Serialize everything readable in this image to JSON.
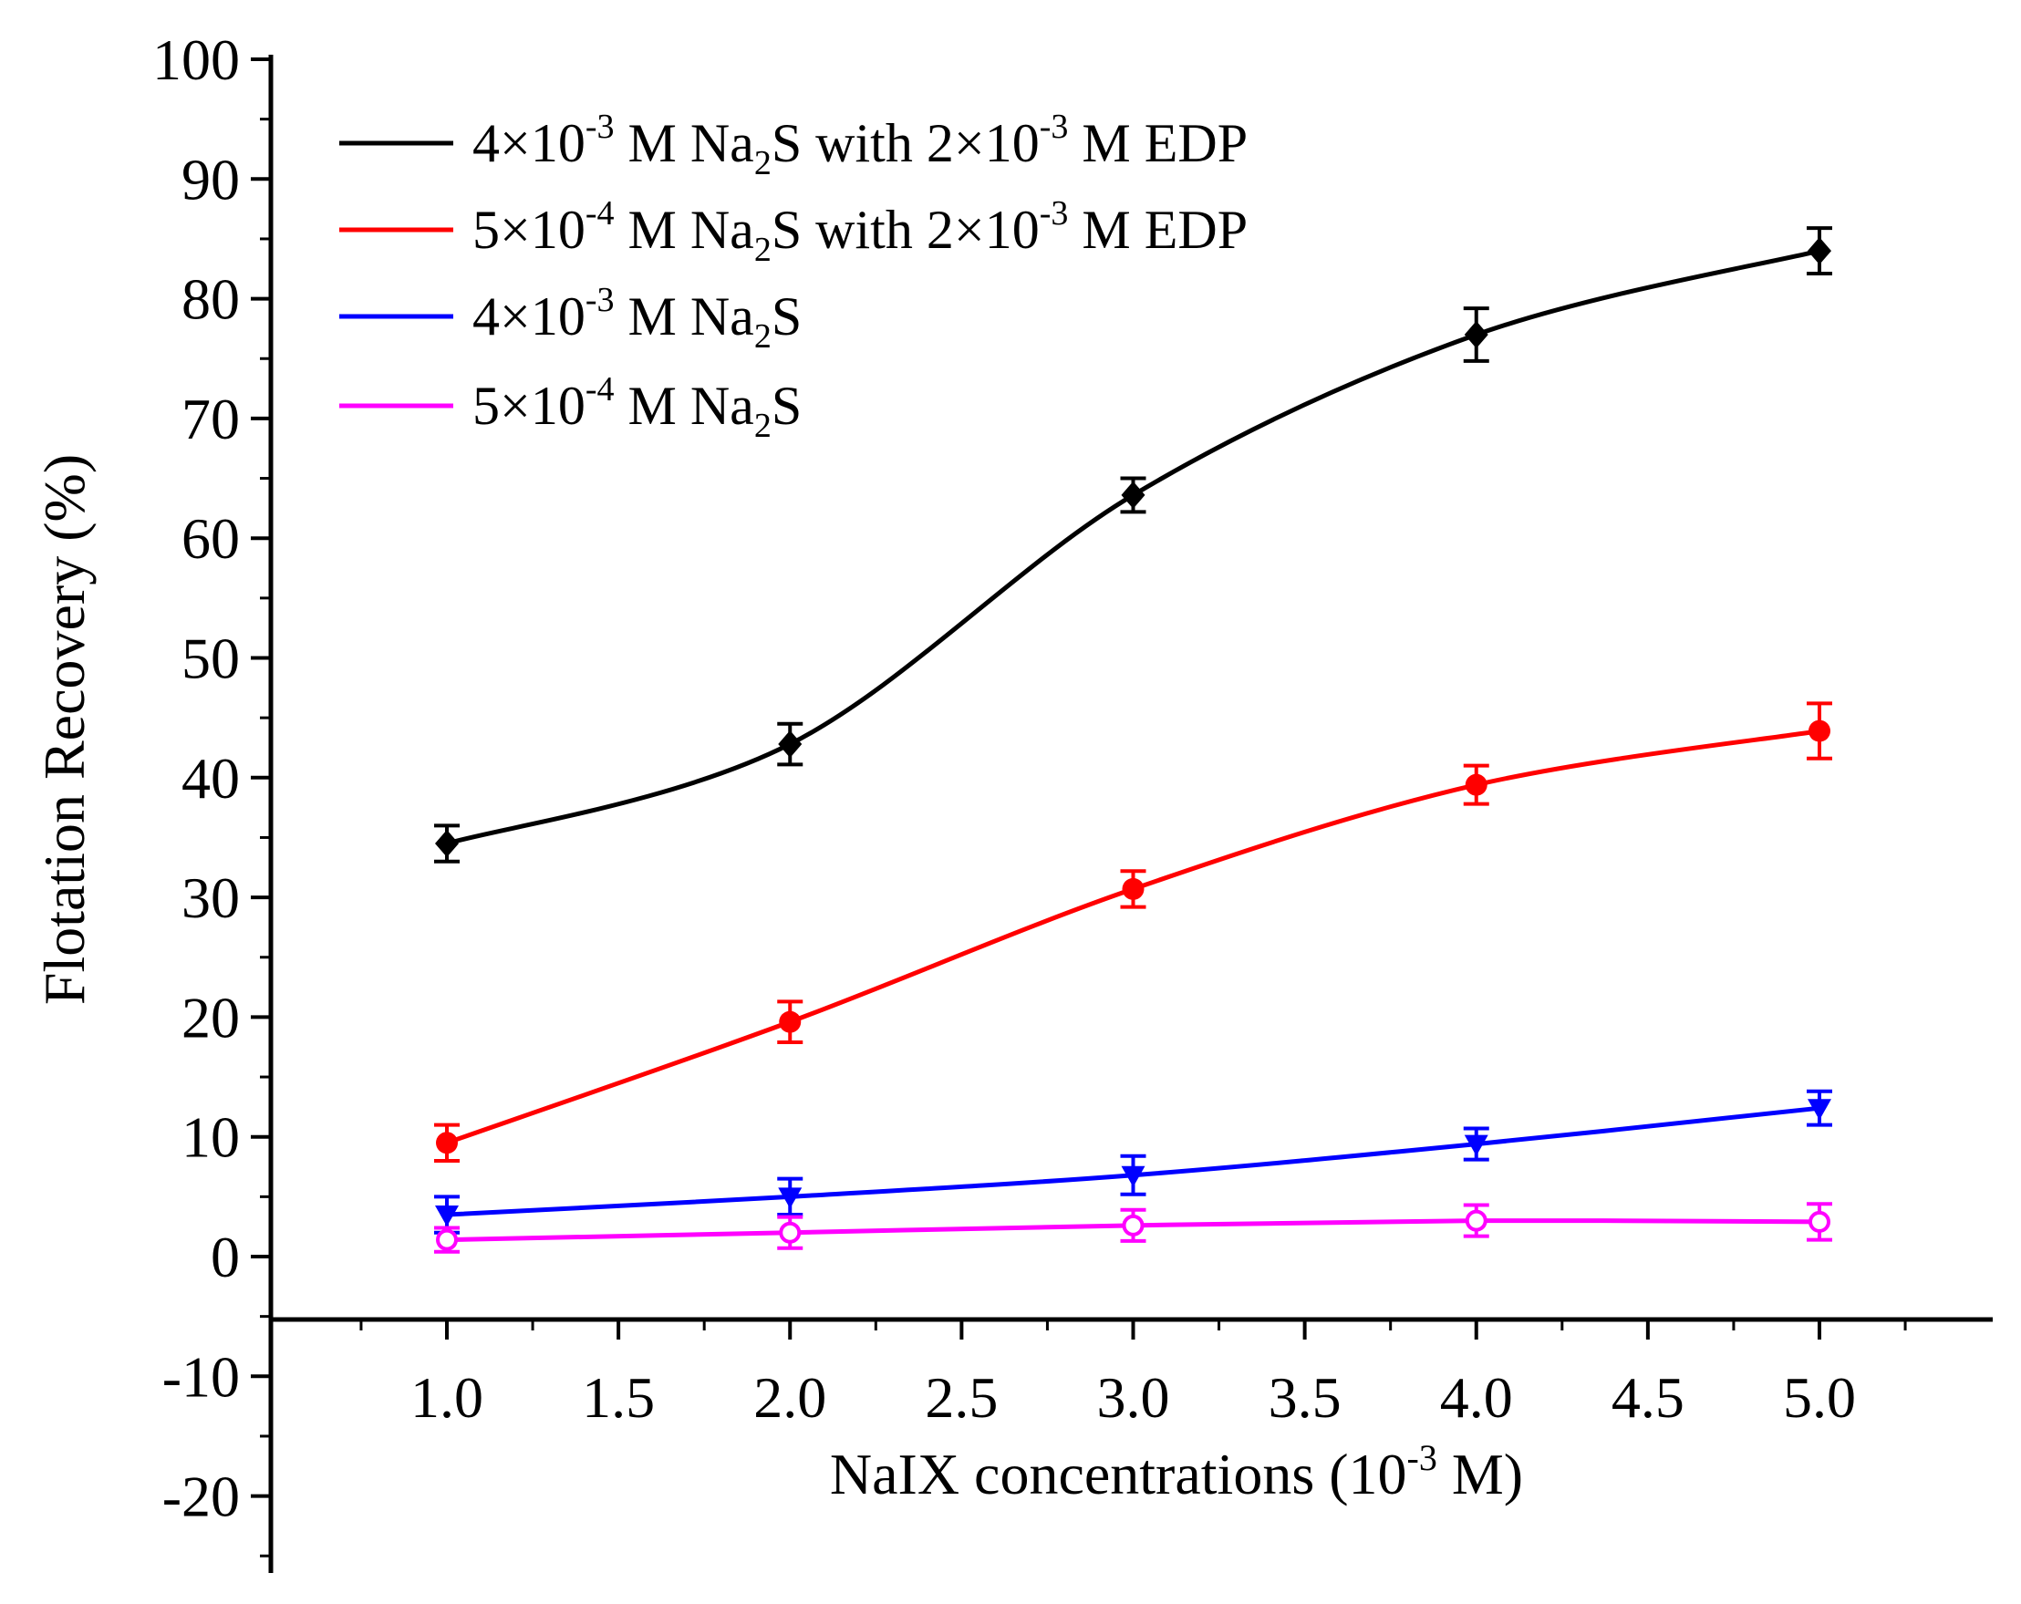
{
  "chart_data": {
    "type": "line",
    "title": "",
    "xlabel": "NaIX concentrations (10",
    "xlabel_sup": "-3",
    "xlabel_end": " M)",
    "ylabel": "Flotation Recovery (%)",
    "x": [
      1.0,
      2.0,
      3.0,
      4.0,
      5.0
    ],
    "xlim": [
      0.5,
      5.5
    ],
    "ylim": [
      -25,
      100
    ],
    "x_ticks": [
      1.0,
      1.5,
      2.0,
      2.5,
      3.0,
      3.5,
      4.0,
      4.5,
      5.0
    ],
    "x_tick_labels": [
      "1.0",
      "1.5",
      "2.0",
      "2.5",
      "3.0",
      "3.5",
      "4.0",
      "4.5",
      "5.0"
    ],
    "y_ticks": [
      -20,
      -10,
      0,
      10,
      20,
      30,
      40,
      50,
      60,
      70,
      80,
      90,
      100
    ],
    "y_tick_labels": [
      "-20",
      "-10",
      "0",
      "10",
      "20",
      "30",
      "40",
      "50",
      "60",
      "70",
      "80",
      "90",
      "100"
    ],
    "grid": false,
    "legend_position": "top-left",
    "series": [
      {
        "name": "4×10-3 M Na2S with 2×10-3 M EDP",
        "legend_parts": [
          "4×10",
          "-3",
          " M Na",
          "2",
          "S with 2×10",
          "-3",
          " M EDP"
        ],
        "color": "#000000",
        "marker": "diamond",
        "values": [
          34.5,
          42.8,
          63.6,
          77.0,
          84.0
        ],
        "errors": [
          1.5,
          1.7,
          1.4,
          2.2,
          1.9
        ]
      },
      {
        "name": "5×10-4 M Na2S with 2×10-3 M EDP",
        "legend_parts": [
          "5×10",
          "-4",
          " M Na",
          "2",
          "S with 2×10",
          "-3",
          " M EDP"
        ],
        "color": "#ff0000",
        "marker": "circle",
        "values": [
          9.5,
          19.6,
          30.7,
          39.4,
          43.9
        ],
        "errors": [
          1.5,
          1.7,
          1.5,
          1.6,
          2.3
        ]
      },
      {
        "name": "4×10-3 M Na2S",
        "legend_parts": [
          "4×10",
          "-3",
          " M Na",
          "2",
          "S"
        ],
        "color": "#0000ff",
        "marker": "triangle-down",
        "values": [
          3.5,
          5.0,
          6.8,
          9.4,
          12.4
        ],
        "errors": [
          1.5,
          1.5,
          1.6,
          1.3,
          1.4
        ]
      },
      {
        "name": "5×10-4 M Na2S",
        "legend_parts": [
          "5×10",
          "-4",
          " M Na",
          "2",
          "S"
        ],
        "color": "#ff00ff",
        "marker": "open-circle",
        "values": [
          1.4,
          2.0,
          2.6,
          3.0,
          2.9
        ],
        "errors": [
          1.0,
          1.3,
          1.3,
          1.3,
          1.5
        ]
      }
    ]
  }
}
